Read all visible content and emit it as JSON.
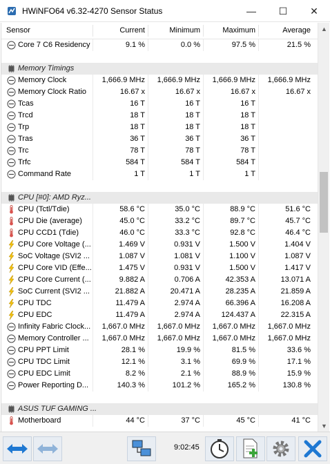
{
  "window": {
    "title": "HWiNFO64 v6.32-4270 Sensor Status",
    "controls": {
      "minimize": "—",
      "maximize": "☐",
      "close": "✕"
    }
  },
  "columns": {
    "sensor": "Sensor",
    "current": "Current",
    "minimum": "Minimum",
    "maximum": "Maximum",
    "average": "Average"
  },
  "rows": [
    {
      "type": "sensor",
      "icon": "clock-sensor-icon",
      "name": "Core 7 C6 Residency",
      "current": "9.1 %",
      "minimum": "0.0 %",
      "maximum": "97.5 %",
      "average": "21.5 %"
    },
    {
      "type": "spacer"
    },
    {
      "type": "group",
      "icon": "memory-chip-icon",
      "name": "Memory Timings"
    },
    {
      "type": "sensor",
      "icon": "clock-sensor-icon",
      "name": "Memory Clock",
      "current": "1,666.9 MHz",
      "minimum": "1,666.9 MHz",
      "maximum": "1,666.9 MHz",
      "average": "1,666.9 MHz"
    },
    {
      "type": "sensor",
      "icon": "clock-sensor-icon",
      "name": "Memory Clock Ratio",
      "current": "16.67 x",
      "minimum": "16.67 x",
      "maximum": "16.67 x",
      "average": "16.67 x"
    },
    {
      "type": "sensor",
      "icon": "clock-sensor-icon",
      "name": "Tcas",
      "current": "16 T",
      "minimum": "16 T",
      "maximum": "16 T",
      "average": ""
    },
    {
      "type": "sensor",
      "icon": "clock-sensor-icon",
      "name": "Trcd",
      "current": "18 T",
      "minimum": "18 T",
      "maximum": "18 T",
      "average": ""
    },
    {
      "type": "sensor",
      "icon": "clock-sensor-icon",
      "name": "Trp",
      "current": "18 T",
      "minimum": "18 T",
      "maximum": "18 T",
      "average": ""
    },
    {
      "type": "sensor",
      "icon": "clock-sensor-icon",
      "name": "Tras",
      "current": "36 T",
      "minimum": "36 T",
      "maximum": "36 T",
      "average": ""
    },
    {
      "type": "sensor",
      "icon": "clock-sensor-icon",
      "name": "Trc",
      "current": "78 T",
      "minimum": "78 T",
      "maximum": "78 T",
      "average": ""
    },
    {
      "type": "sensor",
      "icon": "clock-sensor-icon",
      "name": "Trfc",
      "current": "584 T",
      "minimum": "584 T",
      "maximum": "584 T",
      "average": ""
    },
    {
      "type": "sensor",
      "icon": "clock-sensor-icon",
      "name": "Command Rate",
      "current": "1 T",
      "minimum": "1 T",
      "maximum": "1 T",
      "average": ""
    },
    {
      "type": "spacer"
    },
    {
      "type": "group",
      "icon": "cpu-chip-icon",
      "name": "CPU [#0]: AMD Ryz..."
    },
    {
      "type": "sensor",
      "icon": "thermometer-icon",
      "name": "CPU (Tctl/Tdie)",
      "current": "58.6 °C",
      "minimum": "35.0 °C",
      "maximum": "88.9 °C",
      "average": "51.6 °C"
    },
    {
      "type": "sensor",
      "icon": "thermometer-icon",
      "name": "CPU Die (average)",
      "current": "45.0 °C",
      "minimum": "33.2 °C",
      "maximum": "89.7 °C",
      "average": "45.7 °C"
    },
    {
      "type": "sensor",
      "icon": "thermometer-icon",
      "name": "CPU CCD1 (Tdie)",
      "current": "46.0 °C",
      "minimum": "33.3 °C",
      "maximum": "92.8 °C",
      "average": "46.4 °C"
    },
    {
      "type": "sensor",
      "icon": "lightning-icon",
      "name": "CPU Core Voltage (...",
      "current": "1.469 V",
      "minimum": "0.931 V",
      "maximum": "1.500 V",
      "average": "1.404 V"
    },
    {
      "type": "sensor",
      "icon": "lightning-icon",
      "name": "SoC Voltage (SVI2 ...",
      "current": "1.087 V",
      "minimum": "1.081 V",
      "maximum": "1.100 V",
      "average": "1.087 V"
    },
    {
      "type": "sensor",
      "icon": "lightning-icon",
      "name": "CPU Core VID (Effe...",
      "current": "1.475 V",
      "minimum": "0.931 V",
      "maximum": "1.500 V",
      "average": "1.417 V"
    },
    {
      "type": "sensor",
      "icon": "lightning-icon",
      "name": "CPU Core Current (...",
      "current": "9.882 A",
      "minimum": "0.706 A",
      "maximum": "42.353 A",
      "average": "13.071 A"
    },
    {
      "type": "sensor",
      "icon": "lightning-icon",
      "name": "SoC Current (SVI2 ...",
      "current": "21.882 A",
      "minimum": "20.471 A",
      "maximum": "28.235 A",
      "average": "21.859 A"
    },
    {
      "type": "sensor",
      "icon": "lightning-icon",
      "name": "CPU TDC",
      "current": "11.479 A",
      "minimum": "2.974 A",
      "maximum": "66.396 A",
      "average": "16.208 A"
    },
    {
      "type": "sensor",
      "icon": "lightning-icon",
      "name": "CPU EDC",
      "current": "11.479 A",
      "minimum": "2.974 A",
      "maximum": "124.437 A",
      "average": "22.315 A"
    },
    {
      "type": "sensor",
      "icon": "clock-sensor-icon",
      "name": "Infinity Fabric Clock...",
      "current": "1,667.0 MHz",
      "minimum": "1,667.0 MHz",
      "maximum": "1,667.0 MHz",
      "average": "1,667.0 MHz"
    },
    {
      "type": "sensor",
      "icon": "clock-sensor-icon",
      "name": "Memory Controller ...",
      "current": "1,667.0 MHz",
      "minimum": "1,667.0 MHz",
      "maximum": "1,667.0 MHz",
      "average": "1,667.0 MHz"
    },
    {
      "type": "sensor",
      "icon": "clock-sensor-icon",
      "name": "CPU PPT Limit",
      "current": "28.1 %",
      "minimum": "19.9 %",
      "maximum": "81.5 %",
      "average": "33.6 %"
    },
    {
      "type": "sensor",
      "icon": "clock-sensor-icon",
      "name": "CPU TDC Limit",
      "current": "12.1 %",
      "minimum": "3.1 %",
      "maximum": "69.9 %",
      "average": "17.1 %"
    },
    {
      "type": "sensor",
      "icon": "clock-sensor-icon",
      "name": "CPU EDC Limit",
      "current": "8.2 %",
      "minimum": "2.1 %",
      "maximum": "88.9 %",
      "average": "15.9 %"
    },
    {
      "type": "sensor",
      "icon": "clock-sensor-icon",
      "name": "Power Reporting D...",
      "current": "140.3 %",
      "minimum": "101.2 %",
      "maximum": "165.2 %",
      "average": "130.8 %"
    },
    {
      "type": "spacer"
    },
    {
      "type": "group",
      "icon": "motherboard-chip-icon",
      "name": "ASUS TUF GAMING ..."
    },
    {
      "type": "sensor",
      "icon": "thermometer-icon",
      "name": "Motherboard",
      "current": "44 °C",
      "minimum": "37 °C",
      "maximum": "45 °C",
      "average": "41 °C"
    }
  ],
  "toolbar": {
    "clock": "9:02:45",
    "buttons": [
      {
        "name": "expand-arrows-button",
        "icon": "double-arrow-icon"
      },
      {
        "name": "collapse-arrows-button",
        "icon": "double-arrow-grey-icon"
      },
      {
        "name": "network-button",
        "icon": "network-computers-icon"
      },
      {
        "name": "logging-clock-button",
        "icon": "stopwatch-icon"
      },
      {
        "name": "add-report-button",
        "icon": "document-add-icon"
      },
      {
        "name": "settings-button",
        "icon": "gear-icon"
      },
      {
        "name": "close-sensors-button",
        "icon": "close-x-icon"
      }
    ]
  },
  "colors": {
    "group_bg": "#e9e9e9",
    "accent_blue": "#1e78d2",
    "thermometer_red": "#d9534f",
    "lightning_yellow": "#f4c20d"
  }
}
